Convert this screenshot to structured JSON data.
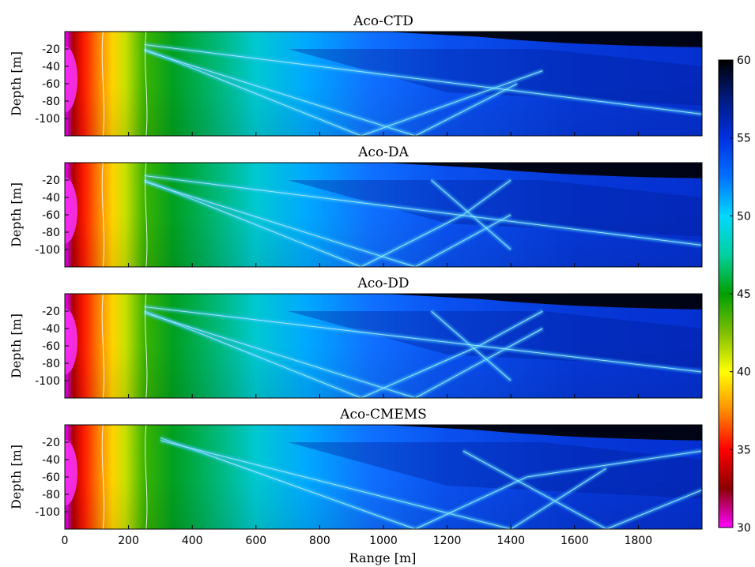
{
  "chart_data": {
    "type": "heatmap",
    "xlabel": "Range [m]",
    "ylabel": "Depth [m]",
    "xlim": [
      0,
      2000
    ],
    "ylim": [
      -120,
      0
    ],
    "x_ticks": [
      "0",
      "200",
      "400",
      "600",
      "800",
      "1000",
      "1200",
      "1400",
      "1600",
      "1800"
    ],
    "y_ticks": [
      "-20",
      "-40",
      "-60",
      "-80",
      "-100"
    ],
    "colorbar": {
      "range": [
        30,
        60
      ],
      "ticks": [
        "30",
        "35",
        "40",
        "45",
        "50",
        "55",
        "60"
      ],
      "colormap": [
        "#ff00ff",
        "#8b0000",
        "#ff0000",
        "#ff8c00",
        "#ffff00",
        "#7fbf00",
        "#00a000",
        "#00d0a0",
        "#00d8ff",
        "#0070ff",
        "#0030e0",
        "#001a80",
        "#000000"
      ]
    },
    "panels": [
      {
        "title": "Aco-CTD",
        "beams": [
          [
            250,
            -20,
            930,
            -120
          ],
          [
            250,
            -22,
            1100,
            -120
          ],
          [
            930,
            -120,
            1500,
            -45
          ],
          [
            1100,
            -120,
            1420,
            -60
          ],
          [
            250,
            -15,
            2000,
            -95
          ]
        ]
      },
      {
        "title": "Aco-DA",
        "beams": [
          [
            250,
            -20,
            930,
            -120
          ],
          [
            250,
            -22,
            1100,
            -120
          ],
          [
            930,
            -120,
            1250,
            -60
          ],
          [
            1250,
            -60,
            1400,
            -20
          ],
          [
            1100,
            -120,
            1400,
            -60
          ],
          [
            1150,
            -20,
            1400,
            -100
          ],
          [
            250,
            -15,
            2000,
            -95
          ]
        ]
      },
      {
        "title": "Aco-DD",
        "beams": [
          [
            250,
            -20,
            930,
            -120
          ],
          [
            250,
            -22,
            1100,
            -120
          ],
          [
            930,
            -120,
            1300,
            -60
          ],
          [
            1300,
            -60,
            1500,
            -20
          ],
          [
            1100,
            -120,
            1500,
            -40
          ],
          [
            1150,
            -20,
            1400,
            -100
          ],
          [
            250,
            -15,
            2000,
            -90
          ]
        ]
      },
      {
        "title": "Aco-CMEMS",
        "beams": [
          [
            300,
            -15,
            1100,
            -120
          ],
          [
            300,
            -18,
            1400,
            -120
          ],
          [
            1100,
            -120,
            1450,
            -60
          ],
          [
            1450,
            -60,
            2000,
            -30
          ],
          [
            1400,
            -120,
            1700,
            -50
          ],
          [
            1250,
            -30,
            1700,
            -120
          ],
          [
            1700,
            -120,
            2000,
            -75
          ]
        ]
      }
    ]
  }
}
